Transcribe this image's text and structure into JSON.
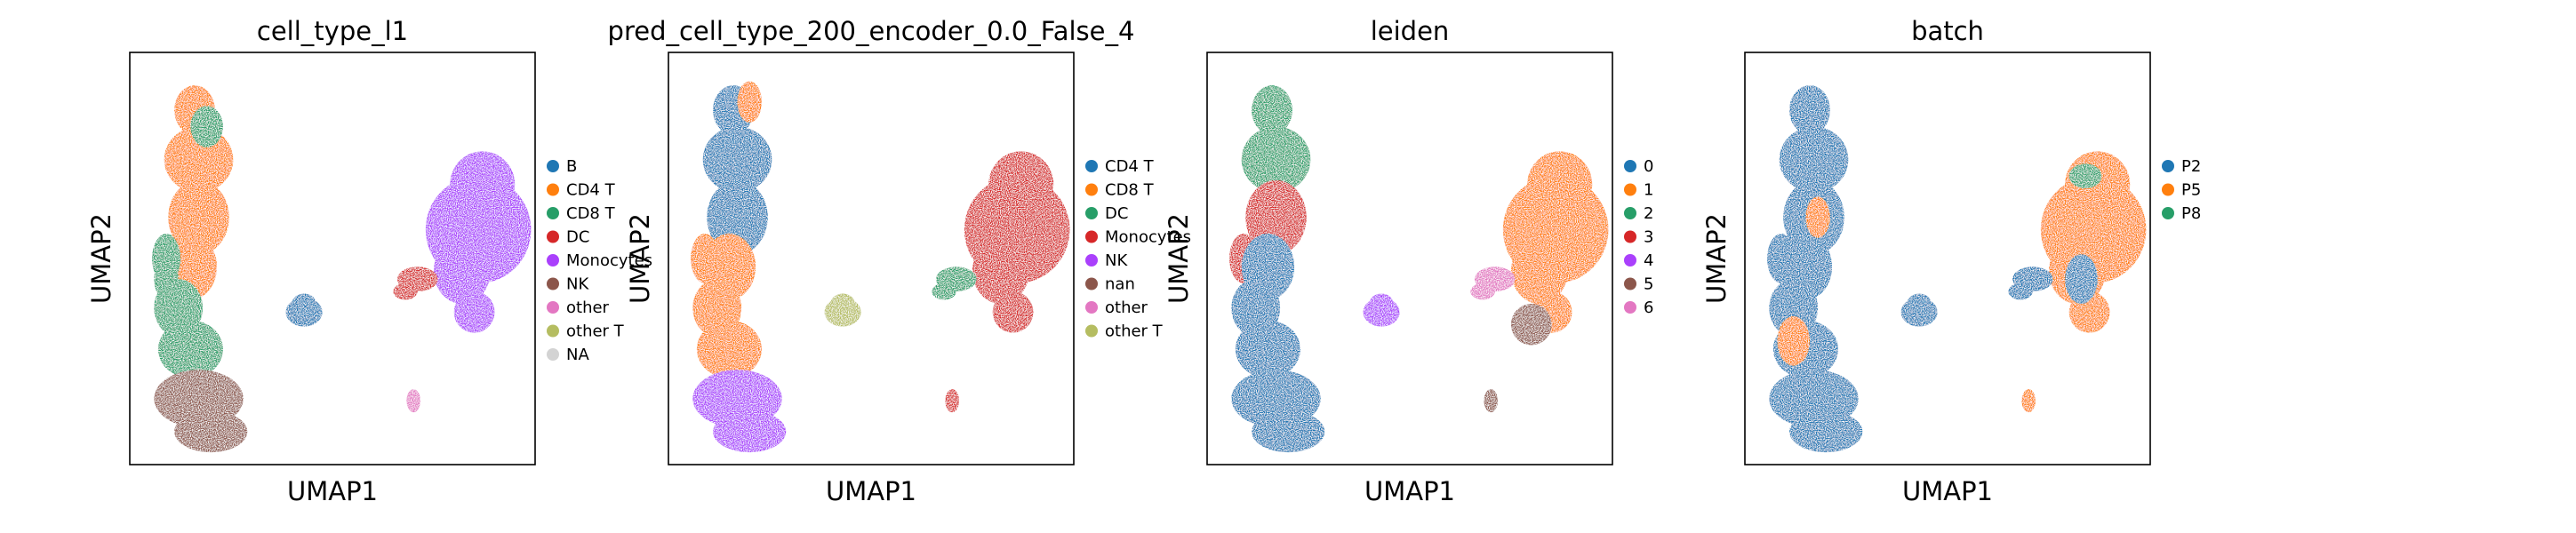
{
  "chart_data": [
    {
      "type": "scatter",
      "title": "cell_type_l1",
      "xlabel": "UMAP1",
      "ylabel": "UMAP2",
      "grid": false,
      "legend": {
        "placement": "right",
        "entries": [
          {
            "label": "B",
            "color": "#1f77b4"
          },
          {
            "label": "CD4 T",
            "color": "#ff7f0e"
          },
          {
            "label": "CD8 T",
            "color": "#279e68"
          },
          {
            "label": "DC",
            "color": "#d62728"
          },
          {
            "label": "Monocytes",
            "color": "#aa40fc"
          },
          {
            "label": "NK",
            "color": "#8c564b"
          },
          {
            "label": "other",
            "color": "#e377c2"
          },
          {
            "label": "other T",
            "color": "#b5bd61"
          },
          {
            "label": "NA",
            "color": "#d3d3d3"
          }
        ]
      }
    },
    {
      "type": "scatter",
      "title": "pred_cell_type_200_encoder_0.0_False_4",
      "xlabel": "UMAP1",
      "ylabel": "UMAP2",
      "grid": false,
      "legend": {
        "placement": "right",
        "entries": [
          {
            "label": "CD4 T",
            "color": "#1f77b4"
          },
          {
            "label": "CD8 T",
            "color": "#ff7f0e"
          },
          {
            "label": "DC",
            "color": "#279e68"
          },
          {
            "label": "Monocytes",
            "color": "#d62728"
          },
          {
            "label": "NK",
            "color": "#aa40fc"
          },
          {
            "label": "nan",
            "color": "#8c564b"
          },
          {
            "label": "other",
            "color": "#e377c2"
          },
          {
            "label": "other T",
            "color": "#b5bd61"
          }
        ]
      }
    },
    {
      "type": "scatter",
      "title": "leiden",
      "xlabel": "UMAP1",
      "ylabel": "UMAP2",
      "grid": false,
      "legend": {
        "placement": "right",
        "entries": [
          {
            "label": "0",
            "color": "#1f77b4"
          },
          {
            "label": "1",
            "color": "#ff7f0e"
          },
          {
            "label": "2",
            "color": "#279e68"
          },
          {
            "label": "3",
            "color": "#d62728"
          },
          {
            "label": "4",
            "color": "#aa40fc"
          },
          {
            "label": "5",
            "color": "#8c564b"
          },
          {
            "label": "6",
            "color": "#e377c2"
          }
        ]
      }
    },
    {
      "type": "scatter",
      "title": "batch",
      "xlabel": "UMAP1",
      "ylabel": "UMAP2",
      "grid": false,
      "legend": {
        "placement": "right",
        "entries": [
          {
            "label": "P2",
            "color": "#1f77b4"
          },
          {
            "label": "P5",
            "color": "#ff7f0e"
          },
          {
            "label": "P8",
            "color": "#279e68"
          }
        ]
      }
    }
  ]
}
